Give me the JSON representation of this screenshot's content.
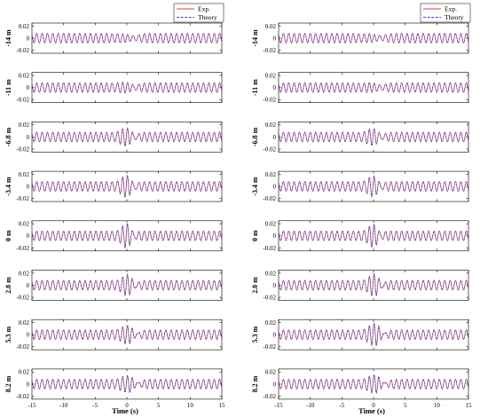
{
  "legend": {
    "exp_label": "Exp.",
    "theory_label": "Theory"
  },
  "colors": {
    "exp": "#e8402a",
    "theory": "#3340d6"
  },
  "chart_data": [
    {
      "type": "line",
      "panel": "left",
      "xlabel": "Time (s)",
      "xlim": [
        -15,
        15
      ],
      "ylim": [
        -0.025,
        0.025
      ],
      "x_ticks": [
        -15,
        -10,
        -5,
        0,
        5,
        10,
        15
      ],
      "x_tick_labels": [
        "-15",
        "-10",
        "-5",
        "0",
        "5",
        "10",
        "15"
      ],
      "y_ticks": [
        0.02,
        0,
        -0.02
      ],
      "y_tick_labels": [
        "0.02",
        "0",
        "-0.02"
      ],
      "series": [
        {
          "name": "Exp.",
          "style": "solid"
        },
        {
          "name": "Theory",
          "style": "dashed"
        }
      ],
      "rows": [
        {
          "label": "-14 m",
          "base_amp": 0.008,
          "burst_amp": 0.004,
          "burst_center": 0.0,
          "burst_width": 1.6,
          "period": 0.85
        },
        {
          "label": "-11 m",
          "base_amp": 0.008,
          "burst_amp": 0.006,
          "burst_center": 0.0,
          "burst_width": 1.5,
          "period": 0.85
        },
        {
          "label": "-6.8 m",
          "base_amp": 0.008,
          "burst_amp": 0.012,
          "burst_center": 0.0,
          "burst_width": 1.3,
          "period": 0.85
        },
        {
          "label": "-3.4 m",
          "base_amp": 0.008,
          "burst_amp": 0.015,
          "burst_center": 0.0,
          "burst_width": 1.1,
          "period": 0.85
        },
        {
          "label": "0 m",
          "base_amp": 0.008,
          "burst_amp": 0.017,
          "burst_center": 0.0,
          "burst_width": 1.0,
          "period": 0.85
        },
        {
          "label": "2.8 m",
          "base_amp": 0.008,
          "burst_amp": 0.015,
          "burst_center": 0.2,
          "burst_width": 1.1,
          "period": 0.85
        },
        {
          "label": "5.3 m",
          "base_amp": 0.008,
          "burst_amp": 0.013,
          "burst_center": 0.3,
          "burst_width": 1.3,
          "period": 0.85
        },
        {
          "label": "8.2 m",
          "base_amp": 0.008,
          "burst_amp": 0.012,
          "burst_center": 0.4,
          "burst_width": 1.4,
          "period": 0.85
        }
      ]
    },
    {
      "type": "line",
      "panel": "right",
      "xlabel": "Time (s)",
      "xlim": [
        -15,
        15
      ],
      "ylim": [
        -0.025,
        0.025
      ],
      "x_ticks": [
        -15,
        -10,
        -5,
        0,
        5,
        10,
        15
      ],
      "x_tick_labels": [
        "-15",
        "-10",
        "-5",
        "0",
        "5",
        "10",
        "15"
      ],
      "y_ticks": [
        0.02,
        0,
        -0.02
      ],
      "y_tick_labels": [
        "0.02",
        "0",
        "-0.02"
      ],
      "series": [
        {
          "name": "Exp.",
          "style": "solid"
        },
        {
          "name": "Theory",
          "style": "dashed"
        }
      ],
      "rows": [
        {
          "label": "-14 m",
          "base_amp": 0.008,
          "burst_amp": 0.004,
          "burst_center": 0.0,
          "burst_width": 1.6,
          "period": 0.85
        },
        {
          "label": "-11 m",
          "base_amp": 0.008,
          "burst_amp": 0.005,
          "burst_center": 0.0,
          "burst_width": 1.5,
          "period": 0.85
        },
        {
          "label": "-6.8 m",
          "base_amp": 0.008,
          "burst_amp": 0.011,
          "burst_center": 0.0,
          "burst_width": 1.3,
          "period": 0.85
        },
        {
          "label": "-3.4 m",
          "base_amp": 0.008,
          "burst_amp": 0.014,
          "burst_center": 0.0,
          "burst_width": 1.1,
          "period": 0.85
        },
        {
          "label": "0 m",
          "base_amp": 0.008,
          "burst_amp": 0.016,
          "burst_center": 0.0,
          "burst_width": 1.0,
          "period": 0.85
        },
        {
          "label": "2.8 m",
          "base_amp": 0.008,
          "burst_amp": 0.016,
          "burst_center": 0.2,
          "burst_width": 1.1,
          "period": 0.85
        },
        {
          "label": "5.3 m",
          "base_amp": 0.008,
          "burst_amp": 0.016,
          "burst_center": 0.3,
          "burst_width": 1.3,
          "period": 0.85
        },
        {
          "label": "8.2 m",
          "base_amp": 0.008,
          "burst_amp": 0.013,
          "burst_center": 0.4,
          "burst_width": 1.4,
          "period": 0.85
        }
      ]
    }
  ]
}
